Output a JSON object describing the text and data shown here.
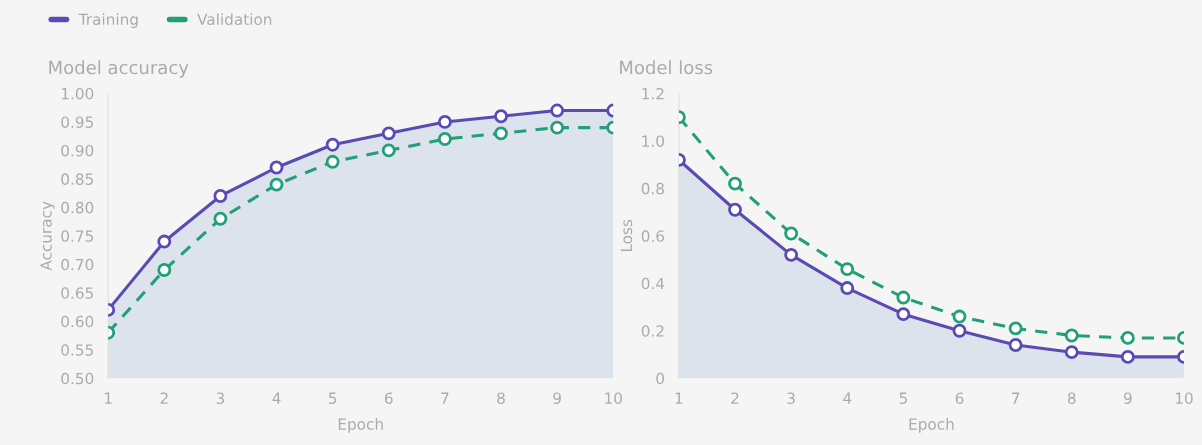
{
  "chart_data": [
    {
      "type": "line",
      "title": "Model accuracy",
      "xlabel": "Epoch",
      "ylabel": "Accuracy",
      "x": [
        1,
        2,
        3,
        4,
        5,
        6,
        7,
        8,
        9,
        10
      ],
      "series": [
        {
          "name": "Training",
          "type": "area",
          "color": "#5a4bb3",
          "line_style": "solid",
          "values": [
            0.62,
            0.74,
            0.82,
            0.87,
            0.91,
            0.93,
            0.95,
            0.96,
            0.97,
            0.97
          ]
        },
        {
          "name": "Validation",
          "color": "#21a077",
          "line_style": "dashed",
          "values": [
            0.58,
            0.69,
            0.78,
            0.84,
            0.88,
            0.9,
            0.92,
            0.93,
            0.94,
            0.94
          ]
        }
      ],
      "xlim": [
        1,
        10
      ],
      "xticks": [
        1,
        2,
        3,
        4,
        5,
        6,
        7,
        8,
        9,
        10
      ],
      "ylim": [
        0.5,
        1.0
      ],
      "yticks": [
        {
          "value": 0.5,
          "label": "0.50"
        },
        {
          "value": 0.55,
          "label": "0.55"
        },
        {
          "value": 0.6,
          "label": "0.60"
        },
        {
          "value": 0.65,
          "label": "0.65"
        },
        {
          "value": 0.7,
          "label": "0.70"
        },
        {
          "value": 0.75,
          "label": "0.75"
        },
        {
          "value": 0.8,
          "label": "0.80"
        },
        {
          "value": 0.85,
          "label": "0.85"
        },
        {
          "value": 0.9,
          "label": "0.90"
        },
        {
          "value": 0.95,
          "label": "0.95"
        },
        {
          "value": 1.0,
          "label": "1.00"
        }
      ],
      "grid": false,
      "marker": "circle",
      "legend": "top left"
    },
    {
      "type": "line",
      "title": "Model loss",
      "xlabel": "Epoch",
      "ylabel": "Loss",
      "x": [
        1,
        2,
        3,
        4,
        5,
        6,
        7,
        8,
        9,
        10
      ],
      "series": [
        {
          "type": "area",
          "color": "#5a4bb3",
          "line_style": "solid",
          "values": [
            0.92,
            0.71,
            0.52,
            0.38,
            0.27,
            0.2,
            0.14,
            0.11,
            0.09,
            0.09
          ]
        },
        {
          "color": "#21a077",
          "line_style": "dashed",
          "values": [
            1.1,
            0.82,
            0.61,
            0.46,
            0.34,
            0.26,
            0.21,
            0.18,
            0.17,
            0.17
          ]
        }
      ],
      "xlim": [
        1,
        10
      ],
      "xticks": [
        1,
        2,
        3,
        4,
        5,
        6,
        7,
        8,
        9,
        10
      ],
      "ylim": [
        0,
        1.2
      ],
      "yticks": [
        0,
        0.2,
        0.4,
        0.6,
        0.8,
        {
          "value": 1.0,
          "label": "1.0"
        },
        1.2
      ],
      "grid": false,
      "marker": "circle"
    }
  ]
}
